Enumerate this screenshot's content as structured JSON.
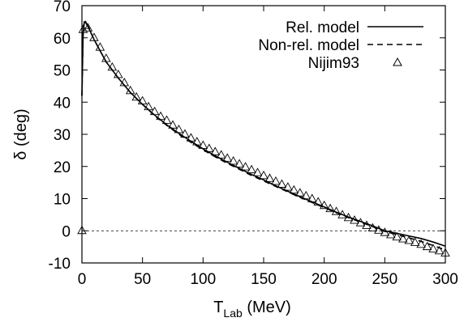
{
  "chart_data": {
    "type": "line",
    "title": "",
    "xlabel_main": "T",
    "xlabel_sub": "Lab",
    "xlabel_unit": " (MeV)",
    "ylabel": "δ (deg)",
    "xlim": [
      0,
      300
    ],
    "ylim": [
      -10,
      70
    ],
    "xticks": [
      0,
      50,
      100,
      150,
      200,
      250,
      300
    ],
    "yticks": [
      -10,
      0,
      10,
      20,
      30,
      40,
      50,
      60,
      70
    ],
    "grid": false,
    "legend_position": "top-right",
    "zero_line": true,
    "series": [
      {
        "name": "Rel. model",
        "style": "solid",
        "x": [
          0,
          1,
          2,
          3,
          5,
          10,
          15,
          20,
          30,
          40,
          50,
          60,
          70,
          80,
          90,
          100,
          110,
          120,
          130,
          140,
          150,
          160,
          170,
          180,
          190,
          200,
          210,
          220,
          230,
          240,
          250,
          260,
          270,
          280,
          290,
          300
        ],
        "y": [
          42,
          62,
          65,
          64.8,
          63.5,
          59.5,
          56,
          52.5,
          47.5,
          43,
          39.3,
          36,
          33,
          30.3,
          27.8,
          25.5,
          23.3,
          21.3,
          19.4,
          17.5,
          15.8,
          14,
          12.3,
          10.6,
          9,
          7.4,
          5.8,
          4.3,
          2.9,
          1.5,
          0,
          -0.8,
          -1.6,
          -2.4,
          -3.5,
          -4.8
        ]
      },
      {
        "name": "Non-rel. model",
        "style": "dashed",
        "x": [
          0,
          1,
          2,
          3,
          5,
          10,
          15,
          20,
          30,
          40,
          50,
          60,
          70,
          80,
          90,
          100,
          110,
          120,
          130,
          140,
          150,
          160,
          170,
          180,
          190,
          200,
          210,
          220,
          230,
          240,
          250,
          260,
          270,
          280,
          290,
          300
        ],
        "y": [
          42,
          62,
          65,
          64.8,
          63.5,
          59.5,
          56,
          52.5,
          47.5,
          43,
          39.3,
          35.8,
          32.8,
          30,
          27.5,
          25.2,
          23,
          21,
          19.1,
          17.2,
          15.5,
          13.8,
          12.1,
          10.4,
          8.8,
          7.2,
          5.6,
          4.1,
          2.7,
          1.3,
          -0.2,
          -1.2,
          -2.2,
          -3.3,
          -4.6,
          -6
        ]
      },
      {
        "name": "Nijim93",
        "style": "triangles",
        "x": [
          0,
          1,
          3,
          5,
          10,
          15,
          20,
          25,
          30,
          35,
          40,
          45,
          50,
          55,
          60,
          65,
          70,
          75,
          80,
          85,
          90,
          95,
          100,
          105,
          110,
          115,
          120,
          125,
          130,
          135,
          140,
          145,
          150,
          155,
          160,
          165,
          170,
          175,
          180,
          185,
          190,
          195,
          200,
          205,
          210,
          215,
          220,
          225,
          230,
          235,
          240,
          245,
          250,
          255,
          260,
          265,
          270,
          275,
          280,
          285,
          290,
          295,
          300
        ],
        "y": [
          0,
          62.5,
          63.8,
          63,
          60,
          57,
          53.5,
          50.8,
          48.5,
          46,
          43.5,
          41.5,
          40.3,
          38.5,
          37,
          35.5,
          34.3,
          32.8,
          31.4,
          30,
          28.8,
          27.6,
          26.5,
          25.5,
          24.5,
          23.5,
          22.5,
          21.6,
          20.7,
          19.8,
          18.9,
          18,
          17.1,
          16.2,
          15.3,
          14.4,
          13.5,
          12.6,
          11.7,
          10.8,
          9.9,
          8.9,
          7.8,
          6.8,
          5.9,
          4.9,
          4,
          3.2,
          2.4,
          1.6,
          0.8,
          0.1,
          -0.6,
          -1.3,
          -2,
          -2.6,
          -3.1,
          -3.7,
          -4.3,
          -5,
          -5.7,
          -6.3,
          -7
        ]
      }
    ]
  }
}
